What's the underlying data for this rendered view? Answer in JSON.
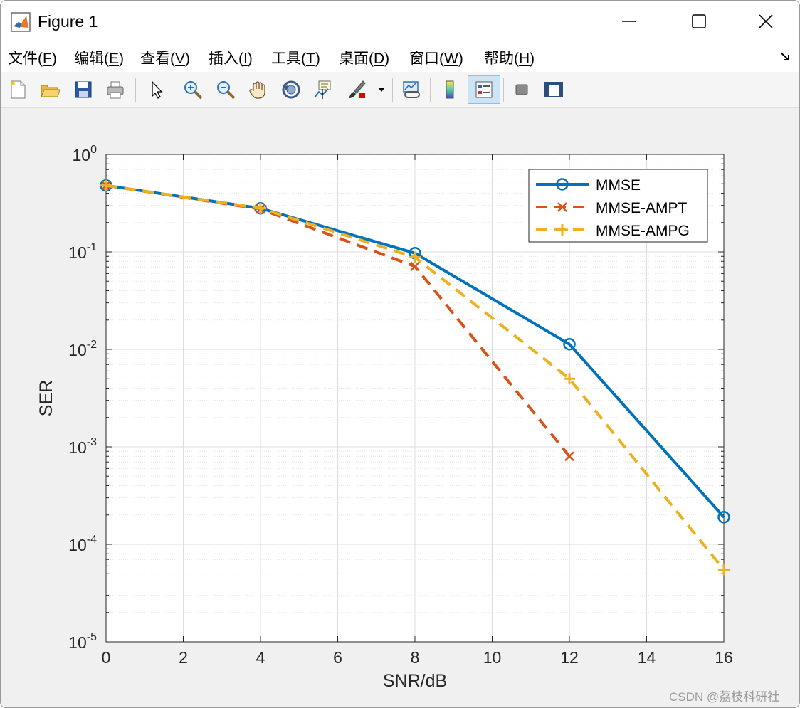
{
  "window": {
    "title": "Figure 1",
    "minimize_label": "—",
    "maximize_label": "☐",
    "close_label": "✕"
  },
  "menu": {
    "items": [
      {
        "label": "文件(",
        "key": "F",
        "suffix": ")"
      },
      {
        "label": "编辑(",
        "key": "E",
        "suffix": ")"
      },
      {
        "label": "查看(",
        "key": "V",
        "suffix": ")"
      },
      {
        "label": "插入(",
        "key": "I",
        "suffix": ")"
      },
      {
        "label": "工具(",
        "key": "T",
        "suffix": ")"
      },
      {
        "label": "桌面(",
        "key": "D",
        "suffix": ")"
      },
      {
        "label": "窗口(",
        "key": "W",
        "suffix": ")"
      },
      {
        "label": "帮助(",
        "key": "H",
        "suffix": ")"
      }
    ],
    "dock_icon": "undock-arrow-icon"
  },
  "toolbar": {
    "icons": [
      "new-figure-icon",
      "open-file-icon",
      "save-icon",
      "print-icon",
      "pointer-icon",
      "zoom-in-icon",
      "zoom-out-icon",
      "pan-hand-icon",
      "rotate-3d-icon",
      "data-cursor-icon",
      "brush-icon",
      "link-plot-icon",
      "colorbar-icon",
      "legend-icon",
      "hide-plot-tools-icon",
      "show-plot-tools-icon"
    ],
    "active": "legend-icon"
  },
  "chart_data": {
    "type": "line",
    "title": "",
    "xlabel": "SNR/dB",
    "ylabel": "SER",
    "xlim": [
      0,
      16
    ],
    "ylim": [
      1e-05,
      1
    ],
    "yscale": "log",
    "grid": true,
    "minor_grid": true,
    "x_ticks": [
      "0",
      "2",
      "4",
      "6",
      "8",
      "10",
      "12",
      "14",
      "16"
    ],
    "y_ticks": [
      {
        "base": "10",
        "exp": "0"
      },
      {
        "base": "10",
        "exp": "-1"
      },
      {
        "base": "10",
        "exp": "-2"
      },
      {
        "base": "10",
        "exp": "-3"
      },
      {
        "base": "10",
        "exp": "-4"
      },
      {
        "base": "10",
        "exp": "-5"
      }
    ],
    "legend_position": "top-right",
    "series": [
      {
        "name": "MMSE",
        "color": "#0072BD",
        "marker": "circle",
        "line": "solid",
        "x": [
          0,
          4,
          8,
          12,
          16
        ],
        "y": [
          0.48,
          0.28,
          0.097,
          0.0113,
          0.00019
        ]
      },
      {
        "name": "MMSE-AMPT",
        "color": "#D95319",
        "marker": "x",
        "line": "dashed",
        "x": [
          0,
          4,
          8,
          12
        ],
        "y": [
          0.48,
          0.275,
          0.071,
          0.0008
        ]
      },
      {
        "name": "MMSE-AMPG",
        "color": "#EDB120",
        "marker": "plus",
        "line": "dashed",
        "x": [
          0,
          4,
          8,
          12,
          16
        ],
        "y": [
          0.48,
          0.28,
          0.088,
          0.005,
          5.5e-05
        ]
      }
    ]
  },
  "watermark": "CSDN @荔枝科研社"
}
